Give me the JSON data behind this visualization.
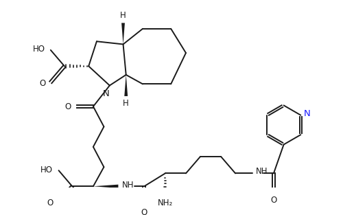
{
  "bg_color": "#ffffff",
  "line_color": "#1a1a1a",
  "line_width": 1.4,
  "font_size": 8.5,
  "N_color": "#1a1aff",
  "xlim": [
    0,
    10
  ],
  "ylim": [
    0,
    6.5
  ]
}
